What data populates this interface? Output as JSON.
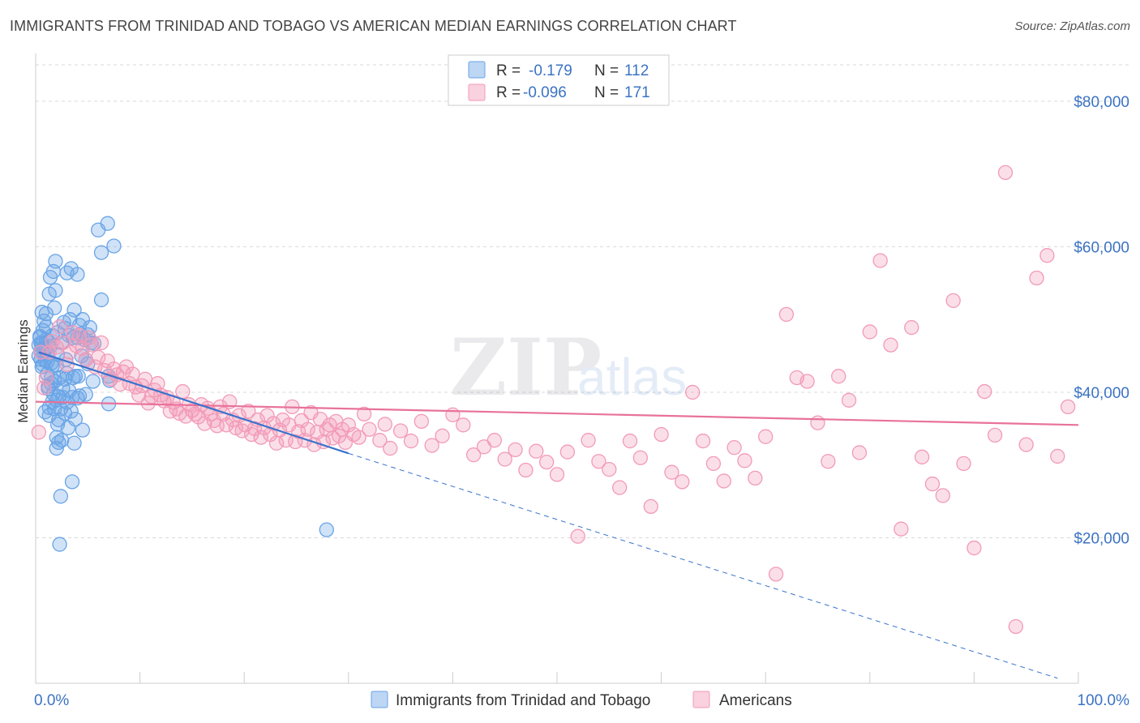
{
  "title": "IMMIGRANTS FROM TRINIDAD AND TOBAGO VS AMERICAN MEDIAN EARNINGS CORRELATION CHART",
  "source": "Source: ZipAtlas.com",
  "watermark": {
    "zip": "ZIP",
    "atlas": "atlas"
  },
  "chart_data": {
    "type": "scatter",
    "ylabel": "Median Earnings",
    "xlim": [
      0,
      100
    ],
    "ylim": [
      0,
      85000
    ],
    "x_tick_labels": {
      "start": "0.0%",
      "end": "100.0%"
    },
    "y_ticks": [
      {
        "value": 20000,
        "label": "$20,000"
      },
      {
        "value": 40000,
        "label": "$40,000"
      },
      {
        "value": 60000,
        "label": "$60,000"
      },
      {
        "value": 80000,
        "label": "$80,000"
      }
    ],
    "grid": true,
    "legend_position": "top-center",
    "series": [
      {
        "name": "Immigrants from Trinidad and Tobago",
        "color": "#6aa4e6",
        "line_color": "#3a72cc",
        "stats": {
          "r_label": "R =",
          "r": "-0.179",
          "n_label": "N =",
          "n": "112"
        },
        "trend": {
          "x0": 0.3,
          "y0": 45500,
          "x1": 30,
          "y1": 31600,
          "dash_to_x": 98,
          "dash_to_y": 700
        },
        "points": [
          [
            0.3,
            46500
          ],
          [
            0.3,
            45000
          ],
          [
            0.4,
            47500
          ],
          [
            0.5,
            44500
          ],
          [
            0.5,
            46800
          ],
          [
            0.6,
            43500
          ],
          [
            0.6,
            51000
          ],
          [
            0.7,
            48500
          ],
          [
            0.8,
            46000
          ],
          [
            0.8,
            45600
          ],
          [
            0.9,
            37300
          ],
          [
            1.0,
            49000
          ],
          [
            1.0,
            50800
          ],
          [
            1.1,
            42500
          ],
          [
            1.1,
            44200
          ],
          [
            1.2,
            47000
          ],
          [
            1.2,
            40500
          ],
          [
            1.3,
            36800
          ],
          [
            1.3,
            53500
          ],
          [
            1.4,
            46300
          ],
          [
            1.4,
            55800
          ],
          [
            1.5,
            44000
          ],
          [
            1.5,
            42000
          ],
          [
            1.6,
            38700
          ],
          [
            1.6,
            47800
          ],
          [
            1.7,
            56600
          ],
          [
            1.8,
            41500
          ],
          [
            1.8,
            51600
          ],
          [
            1.9,
            54000
          ],
          [
            1.9,
            58000
          ],
          [
            2.0,
            43700
          ],
          [
            2.0,
            33800
          ],
          [
            2.0,
            32300
          ],
          [
            2.1,
            45200
          ],
          [
            2.1,
            48200
          ],
          [
            2.2,
            39400
          ],
          [
            2.2,
            36200
          ],
          [
            2.3,
            42000
          ],
          [
            2.3,
            19100
          ],
          [
            2.4,
            25700
          ],
          [
            2.5,
            33400
          ],
          [
            2.5,
            46800
          ],
          [
            2.6,
            40600
          ],
          [
            2.7,
            49600
          ],
          [
            2.8,
            37100
          ],
          [
            2.8,
            48800
          ],
          [
            2.9,
            44500
          ],
          [
            3.0,
            56400
          ],
          [
            3.0,
            42600
          ],
          [
            3.1,
            35100
          ],
          [
            3.2,
            47800
          ],
          [
            3.3,
            50000
          ],
          [
            3.4,
            57000
          ],
          [
            3.5,
            39300
          ],
          [
            3.5,
            27700
          ],
          [
            3.6,
            42000
          ],
          [
            3.7,
            51300
          ],
          [
            3.7,
            33000
          ],
          [
            3.8,
            36300
          ],
          [
            4.0,
            56200
          ],
          [
            4.0,
            47500
          ],
          [
            4.1,
            42200
          ],
          [
            4.2,
            39500
          ],
          [
            4.3,
            48000
          ],
          [
            4.5,
            34800
          ],
          [
            4.5,
            50000
          ],
          [
            4.7,
            47200
          ],
          [
            4.8,
            39700
          ],
          [
            4.8,
            44500
          ],
          [
            5.0,
            43900
          ],
          [
            5.0,
            47900
          ],
          [
            5.2,
            48900
          ],
          [
            5.3,
            46800
          ],
          [
            0.4,
            47700
          ],
          [
            0.5,
            45700
          ],
          [
            0.6,
            46600
          ],
          [
            0.7,
            43800
          ],
          [
            0.8,
            49800
          ],
          [
            0.9,
            44400
          ],
          [
            1.0,
            47200
          ],
          [
            1.1,
            45300
          ],
          [
            1.2,
            40800
          ],
          [
            1.3,
            37900
          ],
          [
            1.5,
            41200
          ],
          [
            1.6,
            43600
          ],
          [
            1.7,
            39800
          ],
          [
            1.8,
            37700
          ],
          [
            2.0,
            38900
          ],
          [
            2.1,
            35600
          ],
          [
            2.2,
            33100
          ],
          [
            2.4,
            37700
          ],
          [
            2.6,
            39300
          ],
          [
            2.8,
            41800
          ],
          [
            3.0,
            38600
          ],
          [
            3.2,
            40200
          ],
          [
            3.4,
            37400
          ],
          [
            3.6,
            47500
          ],
          [
            3.8,
            42200
          ],
          [
            4.0,
            39200
          ],
          [
            4.2,
            49200
          ],
          [
            4.4,
            45000
          ],
          [
            5.5,
            41500
          ],
          [
            5.6,
            46700
          ],
          [
            6.0,
            62300
          ],
          [
            6.3,
            59200
          ],
          [
            6.3,
            52700
          ],
          [
            6.9,
            63200
          ],
          [
            7.0,
            38400
          ],
          [
            7.0,
            42200
          ],
          [
            7.5,
            60100
          ],
          [
            7.1,
            41600
          ],
          [
            27.9,
            21100
          ]
        ]
      },
      {
        "name": "Americans",
        "color": "#f29ab8",
        "line_color": "#e8729a",
        "stats": {
          "r_label": "R =",
          "r": "-0.096",
          "n_label": "N =",
          "n": "171"
        },
        "trend": {
          "x0": 0,
          "y0": 38700,
          "x1": 100,
          "y1": 35500
        },
        "points": [
          [
            0.3,
            34500
          ],
          [
            0.5,
            45500
          ],
          [
            0.8,
            40600
          ],
          [
            1.0,
            42000
          ],
          [
            1.3,
            45500
          ],
          [
            1.6,
            47000
          ],
          [
            2.0,
            46200
          ],
          [
            2.3,
            49000
          ],
          [
            2.6,
            46800
          ],
          [
            3.0,
            43800
          ],
          [
            3.3,
            45500
          ],
          [
            3.6,
            48200
          ],
          [
            3.9,
            46400
          ],
          [
            4.2,
            47800
          ],
          [
            4.5,
            46000
          ],
          [
            4.8,
            44500
          ],
          [
            5.1,
            47500
          ],
          [
            5.4,
            46500
          ],
          [
            5.7,
            43500
          ],
          [
            6.0,
            44800
          ],
          [
            6.3,
            46800
          ],
          [
            6.6,
            43000
          ],
          [
            6.9,
            44300
          ],
          [
            7.2,
            41800
          ],
          [
            7.5,
            43200
          ],
          [
            7.8,
            42400
          ],
          [
            8.1,
            41100
          ],
          [
            8.4,
            42800
          ],
          [
            8.7,
            43500
          ],
          [
            9.0,
            41200
          ],
          [
            9.3,
            42500
          ],
          [
            9.6,
            40700
          ],
          [
            9.9,
            39600
          ],
          [
            10.2,
            40900
          ],
          [
            10.5,
            41800
          ],
          [
            10.8,
            38500
          ],
          [
            11.1,
            39400
          ],
          [
            11.4,
            40300
          ],
          [
            11.7,
            41200
          ],
          [
            12.0,
            39600
          ],
          [
            12.3,
            38800
          ],
          [
            12.6,
            39300
          ],
          [
            12.9,
            37400
          ],
          [
            13.2,
            38600
          ],
          [
            13.5,
            37700
          ],
          [
            13.8,
            37100
          ],
          [
            14.1,
            40100
          ],
          [
            14.4,
            36700
          ],
          [
            14.7,
            38300
          ],
          [
            15.0,
            37500
          ],
          [
            15.3,
            37000
          ],
          [
            15.6,
            36600
          ],
          [
            15.9,
            38300
          ],
          [
            16.2,
            35700
          ],
          [
            16.5,
            37800
          ],
          [
            16.8,
            37000
          ],
          [
            17.1,
            36100
          ],
          [
            17.4,
            35400
          ],
          [
            17.7,
            38000
          ],
          [
            18.0,
            37000
          ],
          [
            18.3,
            35500
          ],
          [
            18.6,
            38700
          ],
          [
            18.9,
            36200
          ],
          [
            19.2,
            35100
          ],
          [
            19.5,
            36800
          ],
          [
            19.8,
            34700
          ],
          [
            20.1,
            35500
          ],
          [
            20.4,
            37400
          ],
          [
            20.7,
            34200
          ],
          [
            21.0,
            35000
          ],
          [
            21.3,
            36200
          ],
          [
            21.6,
            33800
          ],
          [
            21.9,
            35100
          ],
          [
            22.2,
            36800
          ],
          [
            22.5,
            34200
          ],
          [
            22.8,
            35700
          ],
          [
            23.1,
            33000
          ],
          [
            23.4,
            34800
          ],
          [
            23.7,
            36200
          ],
          [
            24.0,
            33400
          ],
          [
            24.3,
            35500
          ],
          [
            24.6,
            38000
          ],
          [
            24.9,
            33200
          ],
          [
            25.2,
            34600
          ],
          [
            25.5,
            36100
          ],
          [
            25.8,
            33400
          ],
          [
            26.1,
            34900
          ],
          [
            26.4,
            37200
          ],
          [
            26.7,
            32800
          ],
          [
            27.0,
            34500
          ],
          [
            27.3,
            36300
          ],
          [
            27.6,
            33200
          ],
          [
            27.9,
            34900
          ],
          [
            28.2,
            35500
          ],
          [
            28.5,
            33700
          ],
          [
            28.8,
            36000
          ],
          [
            29.1,
            34000
          ],
          [
            29.4,
            34900
          ],
          [
            29.7,
            33100
          ],
          [
            30.0,
            35500
          ],
          [
            30.5,
            34200
          ],
          [
            31.0,
            33800
          ],
          [
            31.5,
            37000
          ],
          [
            32.0,
            34900
          ],
          [
            33.0,
            33400
          ],
          [
            33.5,
            35600
          ],
          [
            34.0,
            32300
          ],
          [
            35.0,
            34700
          ],
          [
            36.0,
            33300
          ],
          [
            37.0,
            36000
          ],
          [
            38.0,
            32700
          ],
          [
            39.0,
            34000
          ],
          [
            40.0,
            36900
          ],
          [
            41.0,
            35500
          ],
          [
            42.0,
            31400
          ],
          [
            43.0,
            32500
          ],
          [
            44.0,
            33400
          ],
          [
            45.0,
            30800
          ],
          [
            46.0,
            32100
          ],
          [
            47.0,
            29300
          ],
          [
            48.0,
            31900
          ],
          [
            49.0,
            30400
          ],
          [
            50.0,
            28700
          ],
          [
            51.0,
            31800
          ],
          [
            52.0,
            20200
          ],
          [
            53.0,
            33400
          ],
          [
            54.0,
            30500
          ],
          [
            55.0,
            29400
          ],
          [
            56.0,
            26900
          ],
          [
            57.0,
            33300
          ],
          [
            58.0,
            31000
          ],
          [
            59.0,
            24300
          ],
          [
            60.0,
            34200
          ],
          [
            61.0,
            29000
          ],
          [
            62.0,
            27700
          ],
          [
            63.0,
            40000
          ],
          [
            64.0,
            33300
          ],
          [
            65.0,
            30200
          ],
          [
            66.0,
            27800
          ],
          [
            67.0,
            32400
          ],
          [
            68.0,
            30600
          ],
          [
            69.0,
            28200
          ],
          [
            70.0,
            33900
          ],
          [
            71.0,
            15000
          ],
          [
            72.0,
            50700
          ],
          [
            73.0,
            42000
          ],
          [
            74.0,
            41500
          ],
          [
            75.0,
            35800
          ],
          [
            76.0,
            30500
          ],
          [
            77.0,
            42200
          ],
          [
            78.0,
            38900
          ],
          [
            79.0,
            31700
          ],
          [
            80.0,
            48300
          ],
          [
            81.0,
            58100
          ],
          [
            82.0,
            46500
          ],
          [
            83.0,
            21200
          ],
          [
            84.0,
            48900
          ],
          [
            85.0,
            31100
          ],
          [
            86.0,
            27400
          ],
          [
            87.0,
            25800
          ],
          [
            88.0,
            52600
          ],
          [
            89.0,
            30200
          ],
          [
            90.0,
            18600
          ],
          [
            91.0,
            40100
          ],
          [
            92.0,
            34100
          ],
          [
            93.0,
            70200
          ],
          [
            94.0,
            7800
          ],
          [
            95.0,
            32800
          ],
          [
            96.0,
            55700
          ],
          [
            97.0,
            58800
          ],
          [
            98.0,
            31200
          ],
          [
            99.0,
            38000
          ]
        ]
      }
    ]
  },
  "legend_bottom": {
    "series1_label": "Immigrants from Trinidad and Tobago",
    "series2_label": "Americans"
  }
}
